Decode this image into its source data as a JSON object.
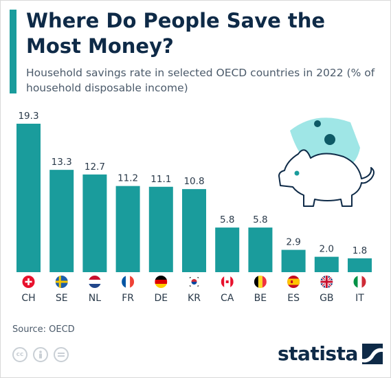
{
  "header": {
    "title": "Where Do People Save the Most Money?",
    "subtitle": "Household savings rate in selected OECD countries in 2022 (% of household disposable income)"
  },
  "footer": {
    "source": "Source: OECD",
    "brand": "statista"
  },
  "icons": [
    "piggy-bank-icon",
    "cc-icon",
    "attribution-icon",
    "no-derivatives-icon",
    "statista-logo-icon"
  ],
  "colors": {
    "bar": "#1a9c9c",
    "title": "#0e2a47",
    "accent": "#1a9c9c",
    "pig_bg": "#9fe6e6"
  },
  "chart_data": {
    "type": "bar",
    "categories": [
      "CH",
      "SE",
      "NL",
      "FR",
      "DE",
      "KR",
      "CA",
      "BE",
      "ES",
      "GB",
      "IT"
    ],
    "values": [
      19.3,
      13.3,
      12.7,
      11.2,
      11.1,
      10.8,
      5.8,
      5.8,
      2.9,
      2.0,
      1.8
    ],
    "value_labels": [
      "19.3",
      "13.3",
      "12.7",
      "11.2",
      "11.1",
      "10.8",
      "5.8",
      "5.8",
      "2.9",
      "2.0",
      "1.8"
    ],
    "flags": [
      "switzerland-flag-icon",
      "sweden-flag-icon",
      "netherlands-flag-icon",
      "france-flag-icon",
      "germany-flag-icon",
      "south-korea-flag-icon",
      "canada-flag-icon",
      "belgium-flag-icon",
      "spain-flag-icon",
      "uk-flag-icon",
      "italy-flag-icon"
    ],
    "ylim": [
      0,
      19.3
    ],
    "grid": false,
    "legend": "none"
  }
}
